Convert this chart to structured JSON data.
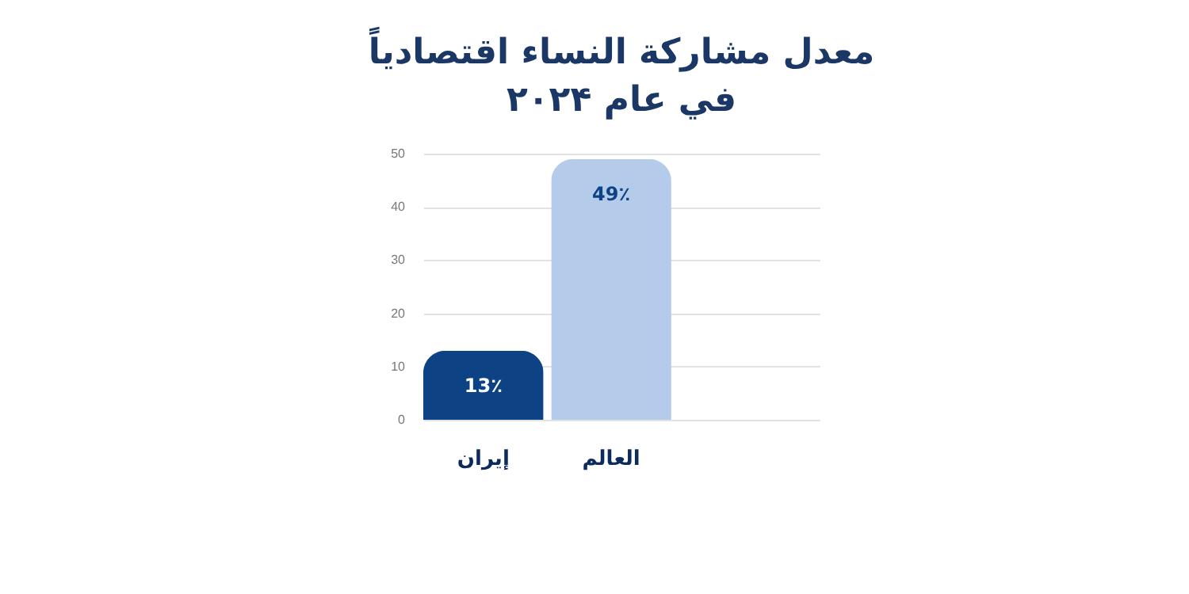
{
  "chart_data": {
    "type": "bar",
    "title": [
      "معدل مشاركة النساء اقتصادياً",
      "في عام ۲۰۲۴"
    ],
    "categories": [
      "إيران",
      "العالم"
    ],
    "values": [
      13,
      49
    ],
    "colors": [
      "#0d4385",
      "#b4cbea"
    ],
    "value_labels": [
      "13٪",
      "49٪"
    ],
    "ylim": [
      0,
      50
    ],
    "yticks": [
      0,
      10,
      20,
      30,
      40,
      50
    ],
    "grid": "y"
  }
}
